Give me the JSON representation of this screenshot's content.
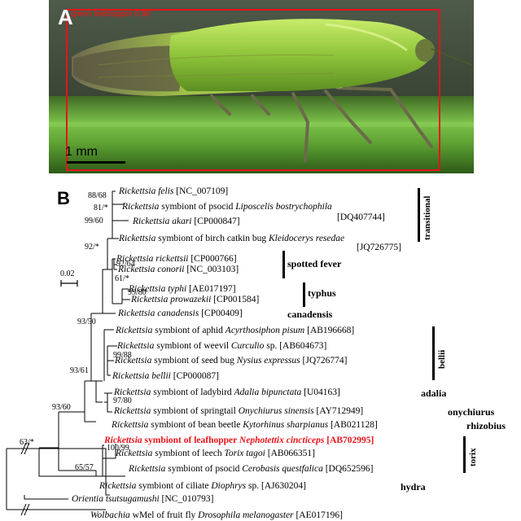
{
  "panel_a": {
    "letter": "A",
    "detection_label": "green leafhopper 0.90",
    "scale_label": "1 mm",
    "colors": {
      "detection_box": "#e8131b",
      "background": "#3e4a3a",
      "insect_body": "#8fc43a",
      "leaf": "#7cc24a"
    }
  },
  "panel_b": {
    "letter": "B",
    "scale_bar": "0.02",
    "taxa": [
      {
        "pre": "",
        "it": "Rickettsia felis",
        "post": " [NC_007109]"
      },
      {
        "pre": "",
        "it": "Rickettsia",
        "post": " symbiont of psocid ",
        "it2": "Liposcelis bostrychophila"
      },
      {
        "pre": "",
        "it": "",
        "post": "[DQ407744]"
      },
      {
        "pre": "",
        "it": "Rickettsia akari",
        "post": " [CP000847]"
      },
      {
        "pre": "",
        "it": "Rickettsia",
        "post": " symbiont of birch catkin bug ",
        "it2": "Kleidocerys resedae"
      },
      {
        "pre": "",
        "it": "",
        "post": "[JQ726775]"
      },
      {
        "pre": "",
        "it": "Rickettsia rickettsii",
        "post": " [CP000766]"
      },
      {
        "pre": "",
        "it": "Rickettsia conorii",
        "post": "  [NC_003103]"
      },
      {
        "pre": "",
        "it": "Rickettsia typhi",
        "post": " [AE017197]"
      },
      {
        "pre": "",
        "it": "Rickettsia prowazekii",
        "post": " [CP001584]"
      },
      {
        "pre": "",
        "it": "Rickettsia canadensis",
        "post": " [CP00409]"
      },
      {
        "pre": "",
        "it": "Rickettsia",
        "post": " symbiont of aphid ",
        "it2": "Acyrthosiphon pisum",
        "post2": " [AB196668]"
      },
      {
        "pre": "",
        "it": "Rickettsia",
        "post": " symbiont of weevil ",
        "it2": "Curculio",
        "post2": " sp. [AB604673]"
      },
      {
        "pre": "",
        "it": "Rickettsia",
        "post": " symbiont of seed bug ",
        "it2": "Nysius expressus",
        "post2": " [JQ726774]"
      },
      {
        "pre": "",
        "it": "Rickettsia bellii",
        "post": " [CP000087]"
      },
      {
        "pre": "",
        "it": "Rickettsia",
        "post": " symbiont of ladybird ",
        "it2": "Adalia bipunctata",
        "post2": " [U04163]"
      },
      {
        "pre": "",
        "it": "Rickettsia",
        "post": " symbiont of springtail ",
        "it2": "Onychiurus sinensis",
        "post2": " [AY712949]"
      },
      {
        "pre": "",
        "it": "Rickettsia",
        "post": " symbiont of bean beetle ",
        "it2": "Kytorhinus sharpianus",
        "post2": " [AB021128]"
      },
      {
        "pre": "",
        "it": "Rickettsia",
        "post": " symbiont of leafhopper ",
        "it2": "Nephotettix cincticeps",
        "post2": " [AB702995]"
      },
      {
        "pre": "",
        "it": "Rickettsia",
        "post": " symbiont of leech ",
        "it2": "Torix tagoi",
        "post2": "  [AB066351]"
      },
      {
        "pre": "",
        "it": "Rickettsia",
        "post": " symbiont of psocid ",
        "it2": "Cerobasis questfalica",
        "post2": " [DQ652596]"
      },
      {
        "pre": "",
        "it": "Rickettsia",
        "post": " symbiont of ciliate ",
        "it2": "Diophrys",
        "post2": " sp. [AJ630204]"
      },
      {
        "pre": "",
        "it": "Orientia tsutsugamushi",
        "post": "  [NC_010793]"
      },
      {
        "pre": "",
        "it": "Wolbachia",
        "post": " wMel of fruit fly ",
        "it2": "Drosophila melanogaster",
        "post2": " [AE017196]"
      }
    ],
    "bootstrap": [
      "88/68",
      "81/*",
      "99/60",
      "92/*",
      "92/64",
      "61/*",
      "99/80",
      "93/50",
      "99/88",
      "93/61",
      "97/80",
      "93/60",
      "63/*",
      "100/99",
      "65/57"
    ],
    "groups": {
      "transitional": "transitional",
      "spotted_fever": "spotted fever",
      "typhus": "typhus",
      "canadensis": "canadensis",
      "bellii": "bellii",
      "adalia": "adalia",
      "onychiurus": "onychiurus",
      "rhizobius": "rhizobius",
      "hydra": "hydra",
      "torix": "torix"
    },
    "colors": {
      "highlight": "#e8131b",
      "lines": "#000000"
    }
  }
}
